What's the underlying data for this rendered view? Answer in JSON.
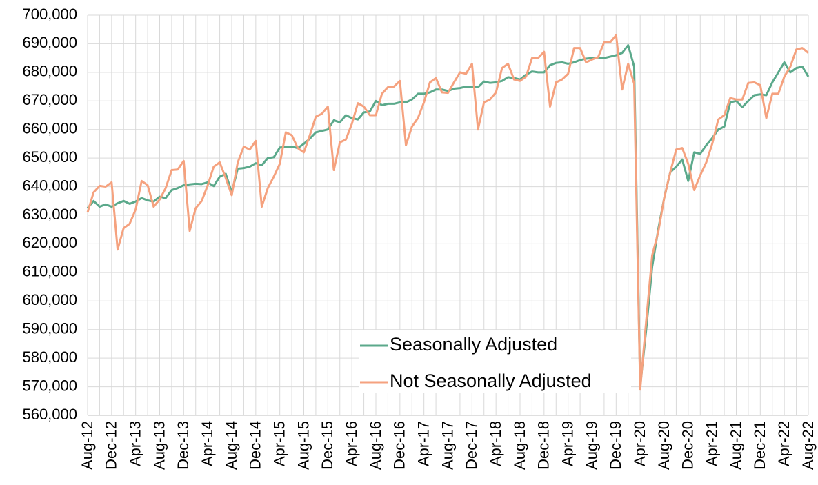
{
  "chart_data": {
    "type": "line",
    "categories": [
      "Aug-12",
      null,
      null,
      null,
      "Dec-12",
      null,
      null,
      null,
      "Apr-13",
      null,
      null,
      null,
      "Aug-13",
      null,
      null,
      null,
      "Dec-13",
      null,
      null,
      null,
      "Apr-14",
      null,
      null,
      null,
      "Aug-14",
      null,
      null,
      null,
      "Dec-14",
      null,
      null,
      null,
      "Apr-15",
      null,
      null,
      null,
      "Aug-15",
      null,
      null,
      null,
      "Dec-15",
      null,
      null,
      null,
      "Apr-16",
      null,
      null,
      null,
      "Aug-16",
      null,
      null,
      null,
      "Dec-16",
      null,
      null,
      null,
      "Apr-17",
      null,
      null,
      null,
      "Aug-17",
      null,
      null,
      null,
      "Dec-17",
      null,
      null,
      null,
      "Apr-18",
      null,
      null,
      null,
      "Aug-18",
      null,
      null,
      null,
      "Dec-18",
      null,
      null,
      null,
      "Apr-19",
      null,
      null,
      null,
      "Aug-19",
      null,
      null,
      null,
      "Dec-19",
      null,
      null,
      null,
      "Apr-20",
      null,
      null,
      null,
      "Aug-20",
      null,
      null,
      null,
      "Dec-20",
      null,
      null,
      null,
      "Apr-21",
      null,
      null,
      null,
      "Aug-21",
      null,
      null,
      null,
      "Dec-21",
      null,
      null,
      null,
      "Apr-22",
      null,
      null,
      null,
      "Aug-22"
    ],
    "series": [
      {
        "name": "Seasonally Adjusted",
        "color": "#5ba98b",
        "values": [
          632500,
          635000,
          633000,
          633800,
          633000,
          634200,
          635000,
          634000,
          634800,
          636000,
          635200,
          634800,
          636500,
          636000,
          638800,
          639500,
          640500,
          640800,
          641000,
          640900,
          641500,
          640200,
          643500,
          644500,
          638000,
          646300,
          646500,
          647000,
          648200,
          647500,
          650000,
          650300,
          653700,
          653800,
          654000,
          653500,
          655000,
          656800,
          659000,
          659500,
          660000,
          663200,
          662500,
          665000,
          664000,
          663500,
          666000,
          666300,
          670000,
          668500,
          669000,
          669000,
          669500,
          669500,
          670500,
          672500,
          672500,
          673000,
          674000,
          674000,
          673500,
          674300,
          674500,
          675000,
          675000,
          674800,
          676800,
          676300,
          676500,
          677000,
          678300,
          678000,
          677500,
          679200,
          680300,
          680000,
          680000,
          682500,
          683300,
          683500,
          683000,
          683500,
          684300,
          684800,
          685000,
          685200,
          685000,
          685500,
          686000,
          686800,
          689500,
          682000,
          570000,
          590000,
          612000,
          625000,
          636000,
          645000,
          647000,
          649500,
          642000,
          652000,
          651500,
          654500,
          657000,
          660000,
          661000,
          669500,
          670000,
          667800,
          670000,
          672000,
          672300,
          672000,
          676500,
          680000,
          683500,
          680000,
          681500,
          682000,
          678500
        ]
      },
      {
        "name": "Not Seasonally Adjusted",
        "color": "#f5a27f",
        "values": [
          631000,
          638000,
          640300,
          640000,
          641500,
          618000,
          625500,
          627000,
          632000,
          642000,
          640500,
          633000,
          635500,
          639500,
          645800,
          646000,
          649000,
          624500,
          632500,
          635000,
          640500,
          647000,
          648500,
          643000,
          637000,
          648500,
          654000,
          653000,
          656000,
          633000,
          639500,
          643500,
          648000,
          659000,
          658000,
          653500,
          652000,
          658000,
          664500,
          665500,
          668000,
          645800,
          655500,
          656500,
          662000,
          669200,
          668000,
          665000,
          665000,
          672500,
          674800,
          675000,
          677000,
          654500,
          661000,
          664000,
          669500,
          676500,
          678000,
          673000,
          672800,
          676500,
          680000,
          679500,
          683000,
          660000,
          669500,
          670500,
          673000,
          681500,
          683000,
          677500,
          677000,
          678500,
          685000,
          685000,
          687200,
          668000,
          676500,
          677500,
          679500,
          688500,
          688500,
          683500,
          684500,
          685300,
          690500,
          690500,
          693000,
          674000,
          683000,
          676000,
          569000,
          593000,
          616000,
          624000,
          636000,
          645000,
          653000,
          653500,
          648000,
          638800,
          644000,
          648500,
          655000,
          663500,
          665000,
          671000,
          670500,
          670500,
          676300,
          676500,
          675500,
          664000,
          672500,
          672500,
          678500,
          682000,
          688000,
          688500,
          686800
        ]
      }
    ],
    "ylim": [
      560000,
      700000
    ],
    "yticks": [
      {
        "value": 560000,
        "label": "560,000"
      },
      {
        "value": 570000,
        "label": "570,000"
      },
      {
        "value": 580000,
        "label": "580,000"
      },
      {
        "value": 590000,
        "label": "590,000"
      },
      {
        "value": 600000,
        "label": "600,000"
      },
      {
        "value": 610000,
        "label": "610,000"
      },
      {
        "value": 620000,
        "label": "620,000"
      },
      {
        "value": 630000,
        "label": "630,000"
      },
      {
        "value": 640000,
        "label": "640,000"
      },
      {
        "value": 650000,
        "label": "650,000"
      },
      {
        "value": 660000,
        "label": "660,000"
      },
      {
        "value": 670000,
        "label": "670,000"
      },
      {
        "value": 680000,
        "label": "680,000"
      },
      {
        "value": 690000,
        "label": "690,000"
      },
      {
        "value": 700000,
        "label": "700,000"
      }
    ],
    "grid": true,
    "legend": "lower center"
  }
}
